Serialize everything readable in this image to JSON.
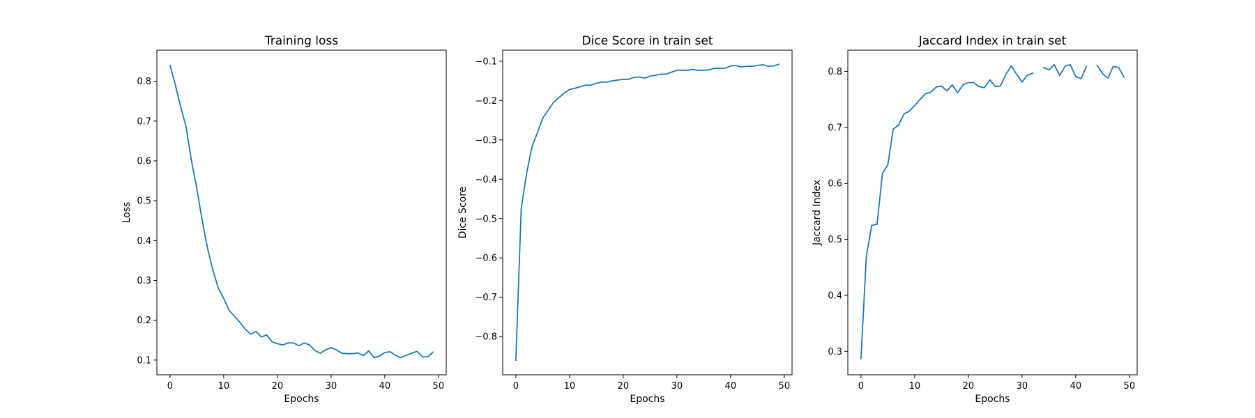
{
  "chart_data": [
    {
      "type": "line",
      "title": "Training loss",
      "xlabel": "Epochs",
      "ylabel": "Loss",
      "xlim": [
        -2.45,
        51.45
      ],
      "ylim": [
        0.063,
        0.878
      ],
      "xticks": [
        0,
        10,
        20,
        30,
        40,
        50
      ],
      "yticks": [
        0.1,
        0.2,
        0.3,
        0.4,
        0.5,
        0.6,
        0.7,
        0.8
      ],
      "grid": false,
      "color": "#1f77b4",
      "series": [
        {
          "x": [
            0,
            1,
            2,
            3,
            4,
            5,
            6,
            7,
            8,
            9,
            10,
            11,
            12,
            13,
            14,
            15,
            16,
            17,
            18,
            19,
            20,
            21,
            22,
            23,
            24,
            25,
            26,
            27,
            28,
            29,
            30,
            31,
            32,
            33,
            34,
            35,
            36,
            37,
            38,
            39,
            40,
            41,
            42,
            43,
            44,
            45,
            46,
            47,
            48,
            49
          ],
          "values": [
            0.84,
            0.79,
            0.735,
            0.685,
            0.6,
            0.53,
            0.45,
            0.38,
            0.325,
            0.28,
            0.255,
            0.225,
            0.21,
            0.195,
            0.178,
            0.165,
            0.172,
            0.158,
            0.163,
            0.146,
            0.141,
            0.138,
            0.143,
            0.143,
            0.136,
            0.143,
            0.138,
            0.124,
            0.117,
            0.126,
            0.131,
            0.126,
            0.117,
            0.116,
            0.116,
            0.118,
            0.111,
            0.123,
            0.106,
            0.11,
            0.119,
            0.121,
            0.112,
            0.106,
            0.112,
            0.117,
            0.122,
            0.108,
            0.108,
            0.12
          ]
        }
      ]
    },
    {
      "type": "line",
      "title": "Dice Score in train set",
      "xlabel": "Epochs",
      "ylabel": "Dice Score",
      "xlim": [
        -2.45,
        51.45
      ],
      "ylim": [
        -0.897,
        -0.072
      ],
      "xticks": [
        0,
        10,
        20,
        30,
        40,
        50
      ],
      "yticks": [
        -0.8,
        -0.7,
        -0.6,
        -0.5,
        -0.4,
        -0.3,
        -0.2,
        -0.1
      ],
      "ytick_labels": [
        "−0.8",
        "−0.7",
        "−0.6",
        "−0.5",
        "−0.4",
        "−0.3",
        "−0.2",
        "−0.1"
      ],
      "grid": false,
      "color": "#1f77b4",
      "series": [
        {
          "x": [
            0,
            1,
            2,
            3,
            4,
            5,
            6,
            7,
            8,
            9,
            10,
            11,
            12,
            13,
            14,
            15,
            16,
            17,
            18,
            19,
            20,
            21,
            22,
            23,
            24,
            25,
            26,
            27,
            28,
            29,
            30,
            31,
            32,
            33,
            34,
            35,
            36,
            37,
            38,
            39,
            40,
            41,
            42,
            43,
            44,
            45,
            46,
            47,
            48,
            49
          ],
          "values": [
            -0.86,
            -0.475,
            -0.385,
            -0.318,
            -0.282,
            -0.245,
            -0.225,
            -0.205,
            -0.193,
            -0.181,
            -0.172,
            -0.169,
            -0.165,
            -0.161,
            -0.161,
            -0.156,
            -0.153,
            -0.153,
            -0.15,
            -0.148,
            -0.146,
            -0.146,
            -0.141,
            -0.14,
            -0.143,
            -0.138,
            -0.136,
            -0.133,
            -0.133,
            -0.128,
            -0.123,
            -0.123,
            -0.123,
            -0.121,
            -0.123,
            -0.123,
            -0.122,
            -0.118,
            -0.118,
            -0.118,
            -0.112,
            -0.111,
            -0.115,
            -0.113,
            -0.113,
            -0.111,
            -0.109,
            -0.113,
            -0.112,
            -0.108
          ]
        }
      ]
    },
    {
      "type": "line",
      "title": "Jaccard Index in train set",
      "xlabel": "Epochs",
      "ylabel": "Jaccard Index",
      "xlim": [
        -2.45,
        51.45
      ],
      "ylim": [
        0.258,
        0.838
      ],
      "xticks": [
        0,
        10,
        20,
        30,
        40,
        50
      ],
      "yticks": [
        0.3,
        0.4,
        0.5,
        0.6,
        0.7,
        0.8
      ],
      "grid": false,
      "color": "#1f77b4",
      "series": [
        {
          "x": [
            0,
            1,
            2,
            3,
            4,
            5,
            6,
            7,
            8,
            9,
            10,
            11,
            12,
            13,
            14,
            15,
            16,
            17,
            18,
            19,
            20,
            21,
            22,
            23,
            24,
            25,
            26,
            27,
            28,
            29,
            30,
            31,
            32,
            33,
            34,
            35,
            36,
            37,
            38,
            39,
            40,
            41,
            42,
            43,
            44,
            45,
            46,
            47,
            48,
            49
          ],
          "values": [
            0.287,
            0.47,
            0.525,
            0.527,
            0.618,
            0.633,
            0.697,
            0.704,
            0.724,
            0.729,
            0.739,
            0.75,
            0.76,
            0.763,
            0.772,
            0.774,
            0.765,
            0.776,
            0.762,
            0.776,
            0.78,
            0.78,
            0.773,
            0.771,
            0.785,
            0.773,
            0.774,
            0.795,
            0.81,
            0.795,
            0.781,
            0.793,
            0.797,
            null,
            0.807,
            0.803,
            0.812,
            0.793,
            0.809,
            0.812,
            0.791,
            0.787,
            0.809,
            null,
            0.811,
            0.796,
            0.788,
            0.809,
            0.807,
            0.79
          ]
        }
      ]
    }
  ]
}
